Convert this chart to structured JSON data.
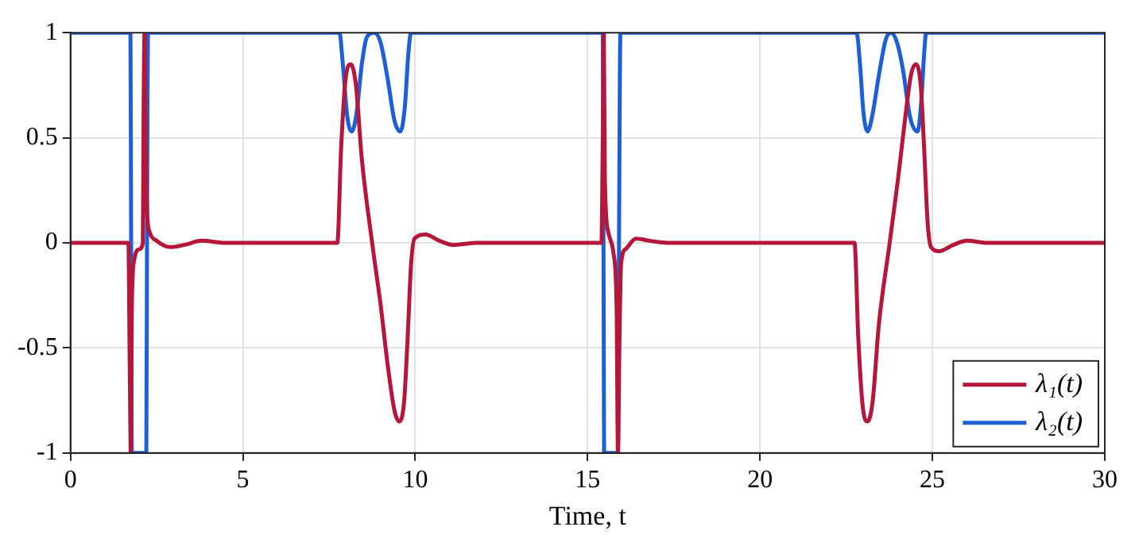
{
  "chart_data": {
    "type": "line",
    "xlabel": "Time, t",
    "xlim": [
      0,
      30
    ],
    "xticks": [
      0,
      5,
      10,
      15,
      20,
      25,
      30
    ],
    "ylim": [
      -1,
      1
    ],
    "yticks": [
      -1,
      -0.5,
      0,
      0.5,
      1
    ],
    "grid": true,
    "legend": "bottom right",
    "marker": "none",
    "line_style": "solid",
    "series": [
      {
        "name": "λ₁(t)",
        "color": "#b5173a",
        "x": [
          0,
          1.68,
          1.72,
          1.75,
          1.78,
          1.85,
          2.0,
          2.1,
          2.12,
          2.15,
          2.18,
          2.22,
          2.3,
          2.5,
          2.9,
          3.3,
          3.8,
          4.5,
          7.74,
          7.85,
          7.98,
          8.13,
          8.28,
          8.45,
          8.75,
          9.0,
          9.2,
          9.4,
          9.54,
          9.68,
          9.78,
          9.88,
          9.98,
          10.3,
          10.7,
          11.1,
          11.8,
          15.4,
          15.44,
          15.47,
          15.5,
          15.6,
          15.75,
          15.84,
          15.88,
          15.92,
          15.97,
          16.1,
          16.4,
          16.8,
          17.3,
          22.74,
          22.85,
          22.98,
          23.12,
          23.27,
          23.44,
          23.76,
          24.0,
          24.2,
          24.38,
          24.52,
          24.66,
          24.76,
          24.86,
          24.96,
          25.2,
          25.6,
          26.0,
          26.6,
          30
        ],
        "values": [
          0,
          0,
          -0.6,
          -1,
          -0.3,
          -0.08,
          -0.03,
          0,
          0.6,
          1,
          0.5,
          0.15,
          0.05,
          0.01,
          -0.02,
          -0.01,
          0.01,
          0,
          0,
          0.45,
          0.78,
          0.85,
          0.75,
          0.4,
          0,
          -0.3,
          -0.58,
          -0.8,
          -0.85,
          -0.75,
          -0.45,
          -0.1,
          0.02,
          0.04,
          0.01,
          -0.01,
          0,
          0,
          0.5,
          1,
          0.3,
          0.05,
          -0.05,
          -0.3,
          -1,
          -0.5,
          -0.1,
          -0.03,
          0.02,
          0.01,
          0,
          0,
          -0.45,
          -0.78,
          -0.85,
          -0.75,
          -0.4,
          0,
          0.3,
          0.58,
          0.8,
          0.85,
          0.75,
          0.45,
          0.1,
          -0.02,
          -0.04,
          -0.01,
          0.01,
          0,
          0
        ]
      },
      {
        "name": "λ₂(t)",
        "color": "#1f5fd6",
        "x": [
          0,
          1.74,
          1.76,
          1.78,
          2.2,
          2.22,
          2.25,
          7.8,
          7.9,
          8.03,
          8.16,
          8.3,
          8.45,
          8.6,
          8.82,
          9.0,
          9.2,
          9.4,
          9.57,
          9.7,
          9.8,
          9.88,
          15.44,
          15.46,
          15.48,
          15.88,
          15.91,
          15.95,
          22.8,
          22.9,
          23.0,
          23.12,
          23.25,
          23.45,
          23.65,
          23.8,
          23.98,
          24.15,
          24.35,
          24.57,
          24.68,
          24.76,
          24.82,
          30
        ],
        "values": [
          1,
          1,
          0,
          -1,
          -1,
          0,
          1,
          1,
          0.85,
          0.6,
          0.53,
          0.62,
          0.85,
          0.98,
          1,
          0.95,
          0.78,
          0.58,
          0.53,
          0.65,
          0.9,
          1,
          1,
          0,
          -1,
          -1,
          0,
          1,
          1,
          0.85,
          0.62,
          0.53,
          0.6,
          0.8,
          0.97,
          1,
          0.95,
          0.82,
          0.6,
          0.53,
          0.68,
          0.9,
          1,
          1
        ]
      }
    ]
  }
}
